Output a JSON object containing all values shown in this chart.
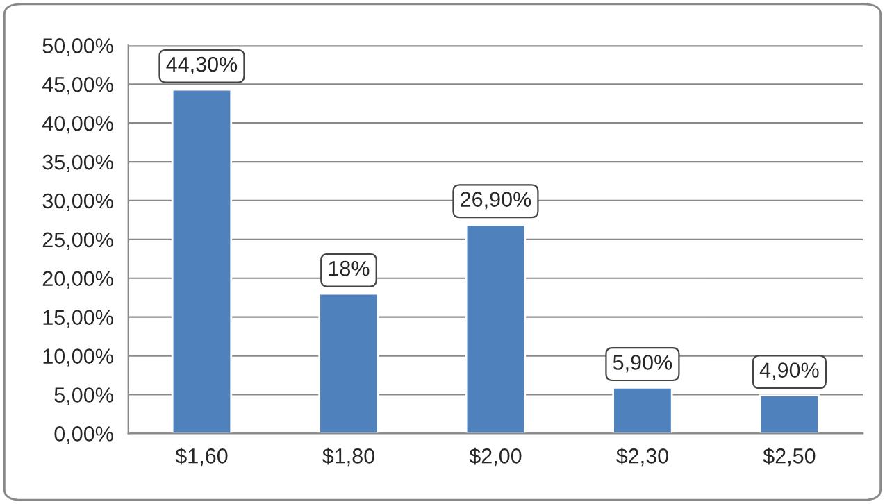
{
  "chart_data": {
    "type": "bar",
    "categories": [
      "$1,60",
      "$1,80",
      "$2,00",
      "$2,30",
      "$2,50"
    ],
    "values": [
      44.3,
      18,
      26.9,
      5.9,
      4.9
    ],
    "value_labels": [
      "44,30%",
      "18%",
      "26,90%",
      "5,90%",
      "4,90%"
    ],
    "color": "#4f81bd",
    "ylim": [
      0,
      50
    ],
    "yticks": [
      {
        "value": 0,
        "label": "0,00%"
      },
      {
        "value": 5,
        "label": "5,00%"
      },
      {
        "value": 10,
        "label": "10,00%"
      },
      {
        "value": 15,
        "label": "15,00%"
      },
      {
        "value": 20,
        "label": "20,00%"
      },
      {
        "value": 25,
        "label": "25,00%"
      },
      {
        "value": 30,
        "label": "30,00%"
      },
      {
        "value": 35,
        "label": "35,00%"
      },
      {
        "value": 40,
        "label": "40,00%"
      },
      {
        "value": 45,
        "label": "45,00%"
      },
      {
        "value": 50,
        "label": "50,00%"
      }
    ],
    "grid": "y",
    "legend": false
  }
}
